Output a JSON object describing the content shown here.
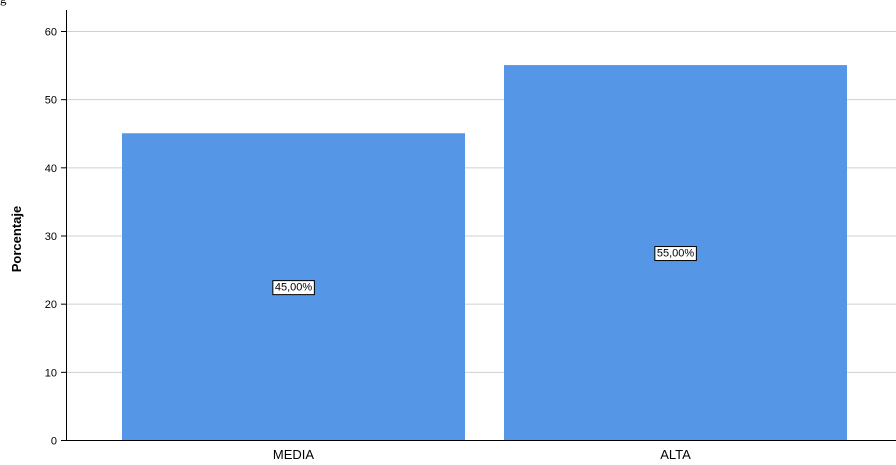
{
  "header": {
    "partial_text": "g"
  },
  "chart_data": {
    "type": "bar",
    "categories": [
      "MEDIA",
      "ALTA"
    ],
    "values": [
      45,
      55
    ],
    "data_labels": [
      "45,00%",
      "55,00%"
    ],
    "title": "",
    "xlabel": "",
    "ylabel": "Porcentaje",
    "ylim": [
      0,
      60
    ],
    "yticks": [
      0,
      10,
      20,
      30,
      40,
      50,
      60
    ],
    "grid": true,
    "legend": "none",
    "bar_color": "#5596e6",
    "grid_color": "#d0d0d0",
    "axis_color": "#000000"
  }
}
